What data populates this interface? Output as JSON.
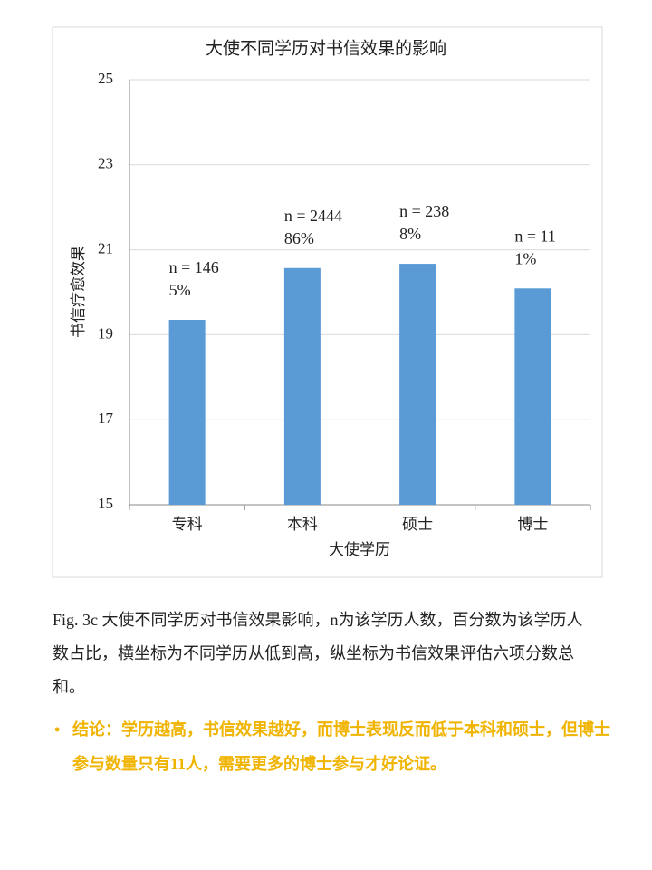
{
  "chart_data": {
    "type": "bar",
    "title": "大使不同学历对书信效果的影响",
    "x_label": "大使学历",
    "y_label": "书信疗愈效果",
    "categories": [
      "专科",
      "本科",
      "硕士",
      "博士"
    ],
    "values": [
      19.35,
      20.57,
      20.67,
      20.09
    ],
    "bar_labels": [
      [
        "n = 146",
        "5%"
      ],
      [
        "n = 2444",
        "86%"
      ],
      [
        "n = 238",
        "8%"
      ],
      [
        "n = 11",
        "1%"
      ]
    ],
    "color": "#5b9bd5",
    "ylim": [
      15,
      25
    ],
    "yticks": [
      15,
      17,
      19,
      21,
      23,
      25
    ],
    "grid": true
  },
  "caption": "Fig. 3c 大使不同学历对书信效果影响，n为该学历人数，百分数为该学历人数占比，横坐标为不同学历从低到高，纵坐标为书信效果评估六项分数总和。",
  "conclusion": "结论：学历越高，书信效果越好，而博士表现反而低于本科和硕士，但博士参与数量只有11人，需要更多的博士参与才好论证。"
}
